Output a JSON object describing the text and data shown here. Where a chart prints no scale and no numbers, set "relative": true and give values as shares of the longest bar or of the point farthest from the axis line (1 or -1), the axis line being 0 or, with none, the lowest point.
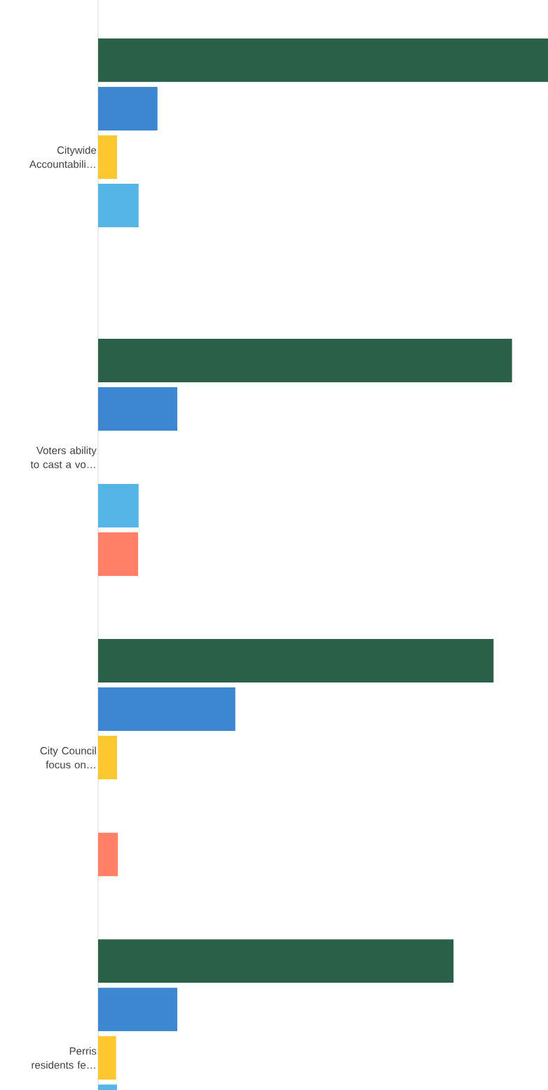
{
  "chart_data": {
    "type": "bar",
    "orientation": "horizontal",
    "relative": true,
    "categories": [
      "Citywide Accountabili…",
      "Voters ability to cast a vo…",
      "City Council focus on…",
      "Perris residents fe…"
    ],
    "series": [
      {
        "color": "#2a5f48",
        "values": [
          1.0,
          0.92,
          0.879,
          0.79
        ]
      },
      {
        "color": "#3d86d0",
        "values": [
          0.132,
          0.176,
          0.305,
          0.176
        ]
      },
      {
        "color": "#fdc82f",
        "values": [
          0.042,
          null,
          0.042,
          0.04
        ]
      },
      {
        "color": "#55b6e6",
        "values": [
          0.09,
          0.09,
          null,
          0.042
        ]
      },
      {
        "color": "#ff8066",
        "values": [
          null,
          0.089,
          0.044,
          null
        ]
      }
    ]
  }
}
